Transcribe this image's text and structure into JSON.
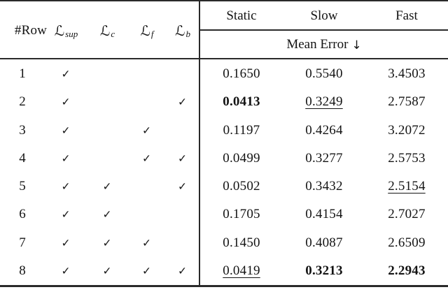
{
  "table": {
    "header": {
      "row_col": "#Row",
      "loss_cols": [
        {
          "symbol": "ℒ",
          "sub": "sup"
        },
        {
          "symbol": "ℒ",
          "sub": "c"
        },
        {
          "symbol": "ℒ",
          "sub": "f"
        },
        {
          "symbol": "ℒ",
          "sub": "b"
        }
      ],
      "metric_cols": [
        "Static",
        "Slow",
        "Fast"
      ],
      "subheader": "Mean Error",
      "subheader_arrow": "↓"
    },
    "check_glyph": "✓",
    "rows": [
      {
        "num": "1",
        "checks": [
          true,
          false,
          false,
          false
        ],
        "values": [
          {
            "text": "0.1650"
          },
          {
            "text": "0.5540"
          },
          {
            "text": "3.4503"
          }
        ]
      },
      {
        "num": "2",
        "checks": [
          true,
          false,
          false,
          true
        ],
        "values": [
          {
            "text": "0.0413",
            "bold": true
          },
          {
            "text": "0.3249",
            "underline": true
          },
          {
            "text": "2.7587"
          }
        ]
      },
      {
        "num": "3",
        "checks": [
          true,
          false,
          true,
          false
        ],
        "values": [
          {
            "text": "0.1197"
          },
          {
            "text": "0.4264"
          },
          {
            "text": "3.2072"
          }
        ]
      },
      {
        "num": "4",
        "checks": [
          true,
          false,
          true,
          true
        ],
        "values": [
          {
            "text": "0.0499"
          },
          {
            "text": "0.3277"
          },
          {
            "text": "2.5753"
          }
        ]
      },
      {
        "num": "5",
        "checks": [
          true,
          true,
          false,
          true
        ],
        "values": [
          {
            "text": "0.0502"
          },
          {
            "text": "0.3432"
          },
          {
            "text": "2.5154",
            "underline": true
          }
        ]
      },
      {
        "num": "6",
        "checks": [
          true,
          true,
          false,
          false
        ],
        "values": [
          {
            "text": "0.1705"
          },
          {
            "text": "0.4154"
          },
          {
            "text": "2.7027"
          }
        ]
      },
      {
        "num": "7",
        "checks": [
          true,
          true,
          true,
          false
        ],
        "values": [
          {
            "text": "0.1450"
          },
          {
            "text": "0.4087"
          },
          {
            "text": "2.6509"
          }
        ]
      },
      {
        "num": "8",
        "checks": [
          true,
          true,
          true,
          true
        ],
        "values": [
          {
            "text": "0.0419",
            "underline": true
          },
          {
            "text": "0.3213",
            "bold": true
          },
          {
            "text": "2.2943",
            "bold": true
          }
        ]
      }
    ]
  },
  "colors": {
    "line": "#2a2a2a",
    "text": "#141414",
    "background": "#ffffff"
  }
}
